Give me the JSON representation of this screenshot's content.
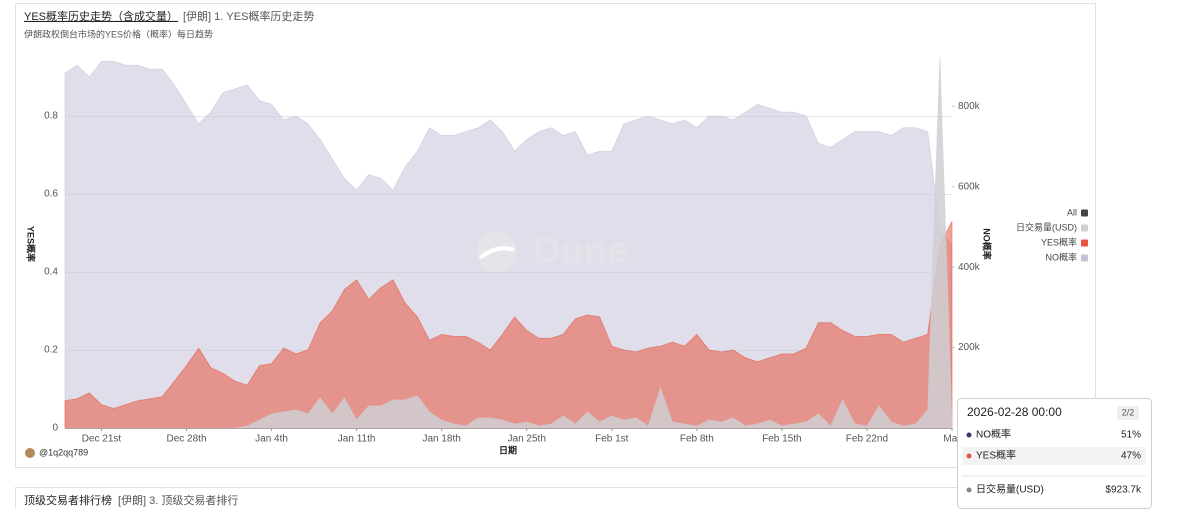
{
  "header": {
    "title": "YES概率历史走势（含成交量）",
    "tag": "[伊朗] 1. YES概率历史走势",
    "subtitle": "伊朗政权倒台市场的YES价格（概率）每日趋势"
  },
  "chart_data": {
    "type": "area",
    "x": [
      "2025-12-18",
      "2025-12-19",
      "2025-12-20",
      "2025-12-21",
      "2025-12-22",
      "2025-12-23",
      "2025-12-24",
      "2025-12-25",
      "2025-12-26",
      "2025-12-27",
      "2025-12-28",
      "2025-12-29",
      "2025-12-30",
      "2025-12-31",
      "2026-01-01",
      "2026-01-02",
      "2026-01-03",
      "2026-01-04",
      "2026-01-05",
      "2026-01-06",
      "2026-01-07",
      "2026-01-08",
      "2026-01-09",
      "2026-01-10",
      "2026-01-11",
      "2026-01-12",
      "2026-01-13",
      "2026-01-14",
      "2026-01-15",
      "2026-01-16",
      "2026-01-17",
      "2026-01-18",
      "2026-01-19",
      "2026-01-20",
      "2026-01-21",
      "2026-01-22",
      "2026-01-23",
      "2026-01-24",
      "2026-01-25",
      "2026-01-26",
      "2026-01-27",
      "2026-01-28",
      "2026-01-29",
      "2026-01-30",
      "2026-01-31",
      "2026-02-01",
      "2026-02-02",
      "2026-02-03",
      "2026-02-04",
      "2026-02-05",
      "2026-02-06",
      "2026-02-07",
      "2026-02-08",
      "2026-02-09",
      "2026-02-10",
      "2026-02-11",
      "2026-02-12",
      "2026-02-13",
      "2026-02-14",
      "2026-02-15",
      "2026-02-16",
      "2026-02-17",
      "2026-02-18",
      "2026-02-19",
      "2026-02-20",
      "2026-02-21",
      "2026-02-22",
      "2026-02-23",
      "2026-02-24",
      "2026-02-25",
      "2026-02-26",
      "2026-02-27",
      "2026-02-28",
      "2026-03-01"
    ],
    "xticks": [
      {
        "value": "2025-12-21",
        "label": "Dec 21st"
      },
      {
        "value": "2025-12-28",
        "label": "Dec 28th"
      },
      {
        "value": "2026-01-04",
        "label": "Jan 4th"
      },
      {
        "value": "2026-01-11",
        "label": "Jan 11th"
      },
      {
        "value": "2026-01-18",
        "label": "Jan 18th"
      },
      {
        "value": "2026-01-25",
        "label": "Jan 25th"
      },
      {
        "value": "2026-02-01",
        "label": "Feb 1st"
      },
      {
        "value": "2026-02-08",
        "label": "Feb 8th"
      },
      {
        "value": "2026-02-15",
        "label": "Feb 15th"
      },
      {
        "value": "2026-02-22",
        "label": "Feb 22nd"
      },
      {
        "value": "2026-03-01",
        "label": "Mar"
      }
    ],
    "xlabel": "日期",
    "ylabel": "YES概率",
    "y2label": "NO概率",
    "ylim": [
      0,
      1
    ],
    "yticks": [
      0,
      0.2,
      0.4,
      0.6,
      0.8
    ],
    "y2lim": [
      0,
      970000
    ],
    "y2ticks": [
      {
        "value": 200000,
        "label": "200k"
      },
      {
        "value": 400000,
        "label": "400k"
      },
      {
        "value": 600000,
        "label": "600k"
      },
      {
        "value": 800000,
        "label": "800k"
      }
    ],
    "grid": true,
    "series": [
      {
        "name": "NO概率",
        "color": "#c5c3d8",
        "values": [
          0.91,
          0.93,
          0.9,
          0.94,
          0.94,
          0.93,
          0.93,
          0.92,
          0.92,
          0.88,
          0.83,
          0.78,
          0.81,
          0.86,
          0.87,
          0.88,
          0.84,
          0.83,
          0.79,
          0.8,
          0.78,
          0.74,
          0.69,
          0.64,
          0.61,
          0.65,
          0.64,
          0.61,
          0.67,
          0.71,
          0.77,
          0.75,
          0.75,
          0.76,
          0.77,
          0.79,
          0.76,
          0.71,
          0.74,
          0.76,
          0.77,
          0.75,
          0.76,
          0.7,
          0.71,
          0.71,
          0.78,
          0.79,
          0.8,
          0.79,
          0.78,
          0.79,
          0.77,
          0.8,
          0.8,
          0.79,
          0.81,
          0.83,
          0.82,
          0.81,
          0.81,
          0.8,
          0.73,
          0.72,
          0.74,
          0.76,
          0.76,
          0.76,
          0.75,
          0.77,
          0.77,
          0.76,
          0.51,
          0.47
        ]
      },
      {
        "name": "YES概率",
        "color": "#e8553f",
        "values": [
          0.07,
          0.075,
          0.09,
          0.06,
          0.05,
          0.06,
          0.07,
          0.075,
          0.08,
          0.12,
          0.16,
          0.205,
          0.155,
          0.14,
          0.12,
          0.11,
          0.16,
          0.165,
          0.205,
          0.19,
          0.2,
          0.27,
          0.3,
          0.355,
          0.38,
          0.33,
          0.36,
          0.38,
          0.32,
          0.285,
          0.225,
          0.24,
          0.235,
          0.235,
          0.22,
          0.2,
          0.24,
          0.285,
          0.25,
          0.23,
          0.23,
          0.24,
          0.28,
          0.29,
          0.285,
          0.21,
          0.2,
          0.195,
          0.205,
          0.21,
          0.22,
          0.21,
          0.24,
          0.2,
          0.195,
          0.2,
          0.18,
          0.17,
          0.18,
          0.19,
          0.19,
          0.205,
          0.27,
          0.27,
          0.25,
          0.235,
          0.235,
          0.24,
          0.24,
          0.22,
          0.23,
          0.24,
          0.47,
          0.53
        ]
      },
      {
        "name": "日交易量(USD)",
        "color": "#cfcfd3",
        "axis": "y2",
        "values": [
          0,
          0,
          0,
          0,
          0,
          0,
          0,
          0,
          0,
          0,
          0,
          0,
          0,
          0,
          0,
          5000,
          20000,
          35000,
          40000,
          45000,
          35000,
          75000,
          35000,
          75000,
          20000,
          55000,
          55000,
          70000,
          70000,
          80000,
          40000,
          20000,
          10000,
          5000,
          25000,
          25000,
          20000,
          10000,
          15000,
          5000,
          10000,
          30000,
          10000,
          40000,
          15000,
          30000,
          20000,
          25000,
          5000,
          100000,
          15000,
          10000,
          5000,
          20000,
          15000,
          25000,
          5000,
          10000,
          20000,
          5000,
          10000,
          15000,
          35000,
          5000,
          70000,
          10000,
          5000,
          55000,
          15000,
          5000,
          10000,
          45000,
          923700,
          20000
        ]
      }
    ],
    "legend_all": "All",
    "legend_all_color": "#444444",
    "watermark": "Dune"
  },
  "tooltip": {
    "title": "2026-02-28 00:00",
    "page": "2/2",
    "rows": [
      {
        "name": "NO概率",
        "value": "51%",
        "color": "#3d3a72"
      },
      {
        "name": "YES概率",
        "value": "47%",
        "color": "#e8553f"
      },
      {
        "name": "日交易量(USD)",
        "value": "$923.7k",
        "color": "#888888"
      }
    ]
  },
  "footer": {
    "user": "@1q2qq789"
  },
  "next_card": {
    "title": "顶级交易者排行榜",
    "tag": "[伊朗] 3. 顶级交易者排行"
  }
}
